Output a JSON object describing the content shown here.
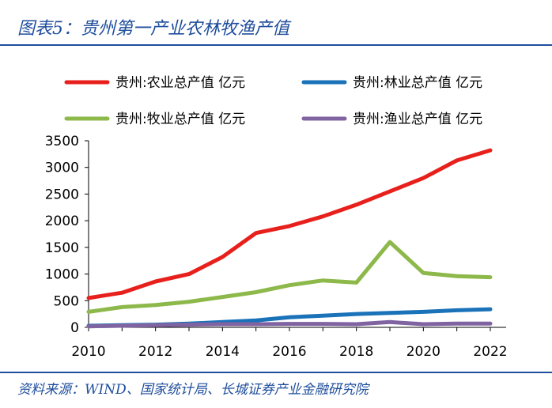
{
  "header": {
    "title": "图表5：贵州第一产业农林牧渔产值"
  },
  "footer": {
    "source": "资料来源：WIND、国家统计局、长城证券产业金融研究院"
  },
  "chart_data": {
    "type": "line",
    "title": "图表5：贵州第一产业农林牧渔产值",
    "xlabel": "",
    "ylabel": "",
    "x": [
      2010,
      2011,
      2012,
      2013,
      2014,
      2015,
      2016,
      2017,
      2018,
      2019,
      2020,
      2021,
      2022
    ],
    "xticks": [
      "2010",
      "2012",
      "2014",
      "2016",
      "2018",
      "2020",
      "2022"
    ],
    "xlim": [
      2010,
      2022
    ],
    "ylim": [
      0,
      3500
    ],
    "yticks": [
      "0",
      "500",
      "1000",
      "1500",
      "2000",
      "2500",
      "3000",
      "3500"
    ],
    "legend_position": "top",
    "series": [
      {
        "name": "贵州:农业总产值 亿元",
        "color": "#e8201c",
        "values": [
          550,
          650,
          860,
          1000,
          1320,
          1770,
          1900,
          2080,
          2300,
          2550,
          2800,
          3130,
          3320
        ]
      },
      {
        "name": "贵州:林业总产值 亿元",
        "color": "#1a72b8",
        "values": [
          30,
          40,
          50,
          70,
          100,
          130,
          190,
          220,
          250,
          270,
          290,
          320,
          340
        ]
      },
      {
        "name": "贵州:牧业总产值 亿元",
        "color": "#8db84a",
        "values": [
          290,
          380,
          420,
          480,
          570,
          660,
          790,
          880,
          840,
          1600,
          1020,
          960,
          940
        ]
      },
      {
        "name": "贵州:渔业总产值 亿元",
        "color": "#8064a2",
        "values": [
          20,
          30,
          40,
          50,
          60,
          60,
          65,
          65,
          60,
          100,
          60,
          70,
          70
        ]
      }
    ]
  }
}
